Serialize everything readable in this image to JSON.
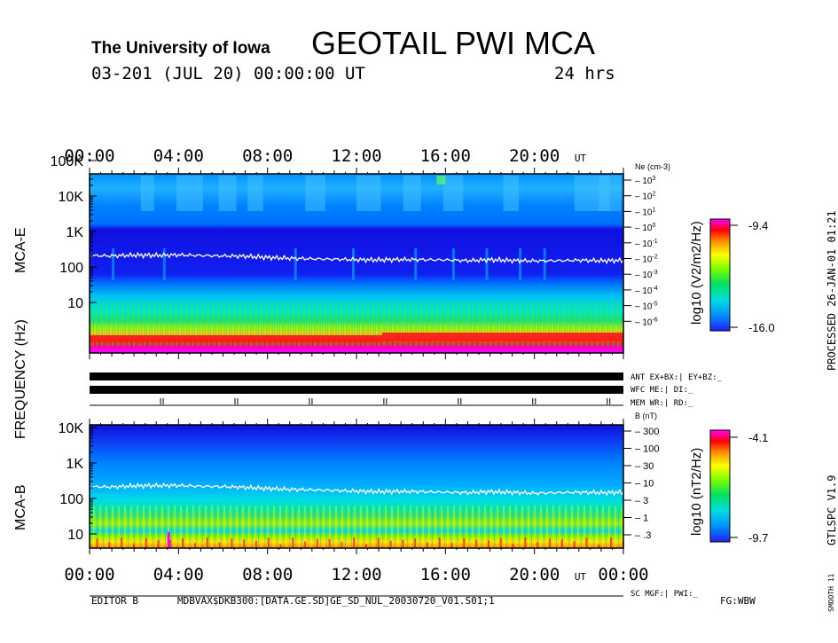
{
  "header": {
    "institution": "The University of Iowa",
    "instrument": "GEOTAIL PWI MCA",
    "date": "03-201 (JUL 20) 00:00:00 UT",
    "duration": "24 hrs"
  },
  "side_labels": {
    "processed": "PROCESSED 26-JAN-01 01:21",
    "version": "GTLSPC V1.9",
    "smooth": "SMOOTH 11"
  },
  "footer": {
    "editor": "EDITOR B",
    "file": "MDBVAX$DKB300:[DATA.GE.SD]GE_SD_NUL_20030720_V01.S01;1",
    "fg": "FG:WBW"
  },
  "status": {
    "ant": "ANT EX+BX:| EY+BZ:_",
    "wfc": "WFC ME:| DI:_",
    "mem": "MEM WR:| RD:_",
    "sc": "SC MGF:| PWI:_"
  },
  "chart_data": [
    {
      "type": "heatmap",
      "panel": "MCA-E",
      "ylabel": "FREQUENCY (Hz)",
      "x_ticks": [
        "00:00",
        "04:00",
        "08:00",
        "12:00",
        "16:00",
        "20:00"
      ],
      "x_unit": "UT",
      "y_ticks": [
        "100K",
        "10K",
        "1K",
        "100",
        "10"
      ],
      "y_scale": "log",
      "right_axis_label": "Ne (cm-3)",
      "right_axis_ticks": [
        "10^3",
        "10^2",
        "10^1",
        "10^0",
        "10^-1",
        "10^-2",
        "10^-3",
        "10^-4",
        "10^-5",
        "10^-6"
      ],
      "colorbar": {
        "label": "log10 (V2/m2/Hz)",
        "max": "-9.4",
        "min": "-16.0"
      },
      "trace": {
        "name": "plasma line",
        "x_hours": [
          0,
          1,
          2,
          3,
          4,
          5,
          6,
          7,
          8,
          9,
          10,
          11,
          12,
          13,
          14,
          15,
          16,
          17,
          18,
          19,
          20,
          21,
          22,
          23,
          24
        ],
        "y_hz": [
          210,
          205,
          215,
          212,
          218,
          210,
          205,
          200,
          185,
          175,
          170,
          165,
          160,
          158,
          162,
          160,
          158,
          150,
          160,
          152,
          148,
          150,
          155,
          150,
          152
        ]
      }
    },
    {
      "type": "heatmap",
      "panel": "MCA-B",
      "x_ticks": [
        "00:00",
        "04:00",
        "08:00",
        "12:00",
        "16:00",
        "20:00",
        "00:00"
      ],
      "x_unit": "UT",
      "y_ticks": [
        "10K",
        "1K",
        "100",
        "10"
      ],
      "y_scale": "log",
      "right_axis_label": "B (nT)",
      "right_axis_ticks": [
        "300",
        "100",
        "30",
        "10",
        "3",
        "1",
        ".3"
      ],
      "colorbar": {
        "label": "log10 (nT2/Hz)",
        "max": "-4.1",
        "min": "-9.7"
      },
      "trace": {
        "name": "electron cyclotron line",
        "x_hours": [
          0,
          1,
          2,
          3,
          4,
          5,
          6,
          7,
          8,
          9,
          10,
          11,
          12,
          13,
          14,
          15,
          16,
          17,
          18,
          19,
          20,
          21,
          22,
          23,
          24
        ],
        "y_hz": [
          215,
          210,
          225,
          230,
          232,
          220,
          215,
          205,
          190,
          180,
          175,
          168,
          160,
          155,
          158,
          155,
          150,
          145,
          155,
          148,
          140,
          145,
          150,
          145,
          148
        ]
      }
    }
  ]
}
